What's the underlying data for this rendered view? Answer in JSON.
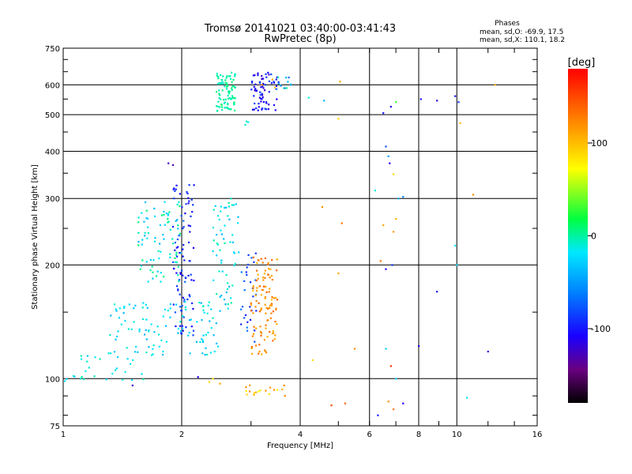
{
  "chart_data": {
    "type": "scatter",
    "title": "Tromsø 20141021 03:40:00-03:41:43",
    "subtitle": "RwPretec (8p)",
    "xlabel": "Frequency [MHz]",
    "ylabel": "Stationary phase Virtual Height [km]",
    "x_scale": "log",
    "y_scale": "log",
    "xlim": [
      1,
      16
    ],
    "ylim": [
      75,
      750
    ],
    "x_ticks": [
      1,
      2,
      4,
      6,
      8,
      10,
      16
    ],
    "x_tick_labels": [
      "1",
      "2",
      "4",
      "6",
      "8",
      "10",
      "16"
    ],
    "y_ticks": [
      75,
      100,
      200,
      300,
      400,
      500,
      600,
      750
    ],
    "y_tick_labels": [
      "75",
      "100",
      "200",
      "300",
      "400",
      "500",
      "600",
      "750"
    ],
    "grid": true,
    "stats": {
      "title": "Phases",
      "line1": "mean, sd,O: -69.9, 17.5",
      "line2": "mean, sd,X: 110.1, 18.2"
    },
    "colorbar": {
      "label": "[deg]",
      "range": [
        -180,
        180
      ],
      "ticks": [
        100,
        0,
        -100
      ],
      "tick_labels": [
        "100",
        "0",
        "-100"
      ]
    },
    "clusters": [
      {
        "x": [
          2.45,
          2.75
        ],
        "y": [
          510,
          650
        ],
        "phase": [
          -10,
          10
        ],
        "n": 90
      },
      {
        "x": [
          3.0,
          3.5
        ],
        "y": [
          510,
          650
        ],
        "phase": [
          -125,
          -80
        ],
        "n": 70
      },
      {
        "x": [
          3.4,
          3.8
        ],
        "y": [
          580,
          630
        ],
        "phase": [
          -90,
          10
        ],
        "n": 14
      },
      {
        "x": [
          1.55,
          2.0
        ],
        "y": [
          180,
          300
        ],
        "phase": [
          -40,
          10
        ],
        "n": 80
      },
      {
        "x": [
          1.9,
          2.15
        ],
        "y": [
          130,
          330
        ],
        "phase": [
          -115,
          -70
        ],
        "n": 90
      },
      {
        "x": [
          1.3,
          2.5
        ],
        "y": [
          115,
          160
        ],
        "phase": [
          -40,
          -5
        ],
        "n": 110
      },
      {
        "x": [
          2.4,
          2.8
        ],
        "y": [
          150,
          300
        ],
        "phase": [
          -40,
          0
        ],
        "n": 60
      },
      {
        "x": [
          2.8,
          3.1
        ],
        "y": [
          125,
          230
        ],
        "phase": [
          -100,
          -60
        ],
        "n": 30
      },
      {
        "x": [
          3.0,
          3.5
        ],
        "y": [
          115,
          210
        ],
        "phase": [
          100,
          140
        ],
        "n": 110
      },
      {
        "x": [
          1.0,
          1.6
        ],
        "y": [
          98,
          118
        ],
        "phase": [
          -30,
          0
        ],
        "n": 30
      },
      {
        "x": [
          2.9,
          3.7
        ],
        "y": [
          90,
          97
        ],
        "phase": [
          60,
          130
        ],
        "n": 18
      }
    ],
    "points": [
      {
        "x": [
          1.85,
          1.9
        ],
        "y": [
          372,
          368
        ],
        "phase": [
          -125,
          -130
        ]
      },
      {
        "x": [
          2.9,
          2.92,
          2.95
        ],
        "y": [
          470,
          480,
          478
        ],
        "phase": [
          -10,
          -5,
          -20
        ]
      },
      {
        "x": [
          3.2,
          3.4,
          3.45
        ],
        "y": [
          600,
          620,
          590
        ],
        "phase": [
          120,
          110,
          100
        ]
      },
      {
        "x": [
          4.2,
          4.6,
          5.0,
          5.05
        ],
        "y": [
          555,
          545,
          488,
          612
        ],
        "phase": [
          -10,
          -40,
          90,
          110
        ]
      },
      {
        "x": [
          6.5,
          6.8,
          7.0
        ],
        "y": [
          505,
          525,
          540
        ],
        "phase": [
          -100,
          -110,
          30
        ]
      },
      {
        "x": [
          6.6,
          6.7,
          6.75,
          6.9
        ],
        "y": [
          412,
          388,
          372,
          348
        ],
        "phase": [
          -80,
          -50,
          -110,
          90
        ]
      },
      {
        "x": [
          6.2,
          7.1,
          7.3
        ],
        "y": [
          315,
          300,
          303
        ],
        "phase": [
          -10,
          -40,
          -60
        ]
      },
      {
        "x": [
          6.5,
          6.9,
          7.0
        ],
        "y": [
          255,
          245,
          265
        ],
        "phase": [
          110,
          115,
          105
        ]
      },
      {
        "x": [
          6.4,
          6.6,
          6.85
        ],
        "y": [
          205,
          195,
          200
        ],
        "phase": [
          130,
          -110,
          -90
        ]
      },
      {
        "x": [
          8.1,
          8.9,
          9.9,
          10.1
        ],
        "y": [
          550,
          545,
          560,
          540
        ],
        "phase": [
          -100,
          -120,
          -100,
          -90
        ]
      },
      {
        "x": [
          10.0,
          10.2,
          12.5,
          11.0
        ],
        "y": [
          200,
          475,
          600,
          307
        ],
        "phase": [
          -20,
          100,
          110,
          120
        ]
      },
      {
        "x": [
          9.9,
          8.9,
          8.0,
          12.0
        ],
        "y": [
          225,
          170,
          122,
          118
        ],
        "phase": [
          -20,
          -100,
          -110,
          -120
        ]
      },
      {
        "x": [
          4.55,
          5.1,
          5.0,
          5.5
        ],
        "y": [
          285,
          258,
          190,
          120
        ],
        "phase": [
          120,
          130,
          110,
          120
        ]
      },
      {
        "x": [
          4.3,
          5.2,
          4.8
        ],
        "y": [
          112,
          86,
          85
        ],
        "phase": [
          90,
          140,
          150
        ]
      },
      {
        "x": [
          6.3,
          6.7,
          6.9,
          7.3
        ],
        "y": [
          80,
          87,
          83,
          86
        ],
        "phase": [
          -100,
          120,
          130,
          -110
        ]
      },
      {
        "x": [
          6.6,
          6.8,
          7.0
        ],
        "y": [
          120,
          108,
          100
        ],
        "phase": [
          -30,
          160,
          -20
        ]
      },
      {
        "x": [
          2.35,
          2.4,
          2.5,
          1.5,
          2.2
        ],
        "y": [
          98,
          100,
          97,
          96,
          101
        ],
        "phase": [
          90,
          80,
          110,
          -120,
          -110
        ]
      },
      {
        "x": [
          10.6
        ],
        "y": [
          89
        ],
        "phase": [
          -20
        ]
      }
    ]
  }
}
